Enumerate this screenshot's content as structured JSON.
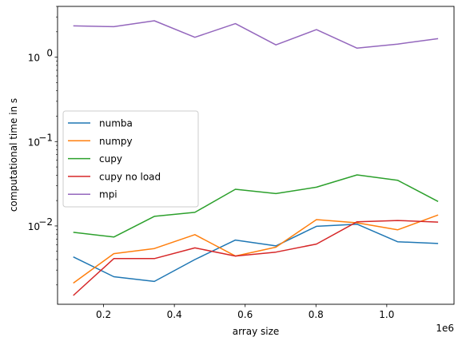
{
  "chart_data": {
    "type": "line",
    "title": "",
    "xlabel": "array size",
    "ylabel": "computational time in s",
    "x_offset_label": "1e6",
    "yscale": "log",
    "xlim": [
      70000,
      1190000
    ],
    "ylim": [
      0.00118,
      4.0
    ],
    "x_ticks": [
      200000,
      400000,
      600000,
      800000,
      1000000
    ],
    "x_tick_labels": [
      "0.2",
      "0.4",
      "0.6",
      "0.8",
      "1.0"
    ],
    "y_ticks": [
      0.01,
      0.1,
      1
    ],
    "y_tick_labels": [
      "10",
      "10",
      "10"
    ],
    "y_tick_exponents": [
      "−2",
      "−1",
      "0"
    ],
    "grid": false,
    "legend_position": "center-left",
    "x": [
      114500,
      229000,
      343500,
      458000,
      572500,
      687000,
      801500,
      916000,
      1030500,
      1145000
    ],
    "series": [
      {
        "name": "numba",
        "color": "#1f77b4",
        "values": [
          0.0043,
          0.0025,
          0.0022,
          0.004,
          0.0068,
          0.0058,
          0.0099,
          0.0105,
          0.0065,
          0.0062
        ]
      },
      {
        "name": "numpy",
        "color": "#ff7f0e",
        "values": [
          0.0021,
          0.0047,
          0.0054,
          0.0079,
          0.0044,
          0.0056,
          0.0119,
          0.0109,
          0.009,
          0.0135
        ]
      },
      {
        "name": "cupy",
        "color": "#2ca02c",
        "values": [
          0.0084,
          0.0074,
          0.013,
          0.0145,
          0.0272,
          0.0242,
          0.0288,
          0.0403,
          0.0348,
          0.0195
        ]
      },
      {
        "name": "cupy no load",
        "color": "#d62728",
        "values": [
          0.0015,
          0.0041,
          0.0041,
          0.0055,
          0.0044,
          0.0049,
          0.0061,
          0.0112,
          0.0116,
          0.0111
        ]
      },
      {
        "name": "mpi",
        "color": "#9467bd",
        "values": [
          2.35,
          2.3,
          2.7,
          1.72,
          2.5,
          1.4,
          2.12,
          1.28,
          1.43,
          1.66
        ]
      }
    ]
  }
}
